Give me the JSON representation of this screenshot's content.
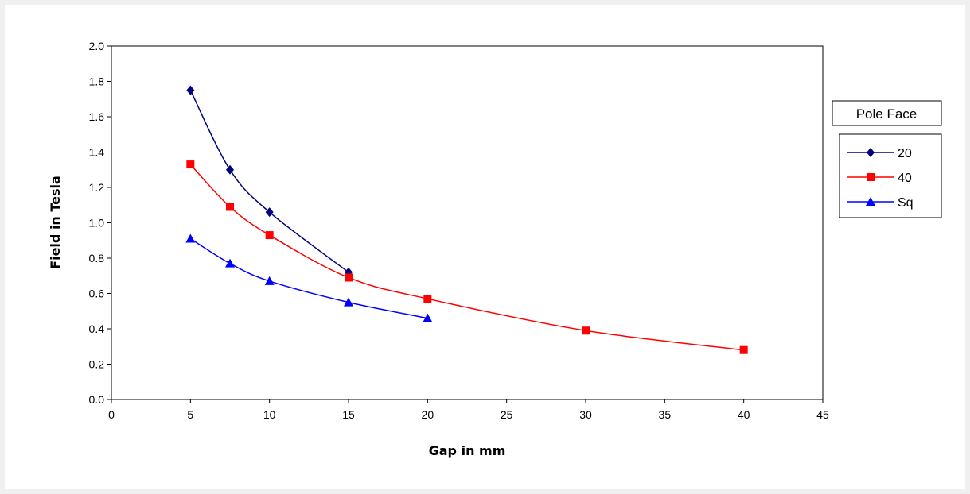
{
  "chart_data": {
    "type": "line",
    "title": "",
    "xlabel": "Gap in mm",
    "ylabel": "Field in Tesla",
    "xlim": [
      0,
      45
    ],
    "ylim": [
      0,
      2.0
    ],
    "x_ticks": [
      "0",
      "5",
      "10",
      "15",
      "20",
      "25",
      "30",
      "35",
      "40",
      "45"
    ],
    "y_ticks": [
      "0.0",
      "0.2",
      "0.4",
      "0.6",
      "0.8",
      "1.0",
      "1.2",
      "1.4",
      "1.6",
      "1.8",
      "2.0"
    ],
    "grid": false,
    "legend_title": "Pole Face",
    "legend_position": "right",
    "series": [
      {
        "name": "20",
        "color": "#000080",
        "marker": "diamond",
        "x": [
          5,
          7.5,
          10,
          15
        ],
        "y": [
          1.75,
          1.3,
          1.06,
          0.72
        ]
      },
      {
        "name": "40",
        "color": "#ff0000",
        "marker": "square",
        "x": [
          5,
          7.5,
          10,
          15,
          20,
          30,
          40
        ],
        "y": [
          1.33,
          1.09,
          0.93,
          0.69,
          0.57,
          0.39,
          0.28
        ]
      },
      {
        "name": "Sq",
        "color": "#0000ff",
        "marker": "triangle",
        "x": [
          5,
          7.5,
          10,
          15,
          20
        ],
        "y": [
          0.91,
          0.77,
          0.67,
          0.55,
          0.46
        ]
      }
    ]
  }
}
